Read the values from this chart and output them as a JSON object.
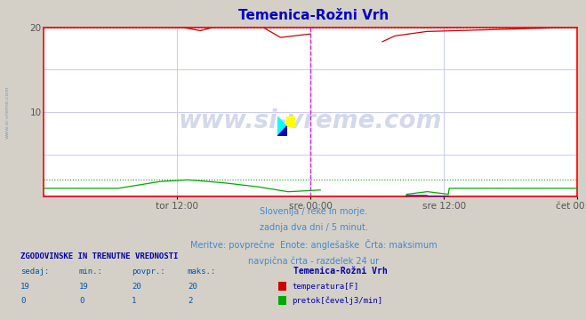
{
  "title": "Temenica-Rožni Vrh",
  "title_color": "#0000cc",
  "bg_color": "#d4d0c8",
  "plot_bg_color": "#ffffff",
  "grid_color": "#c8c8ff",
  "x_labels": [
    "tor 12:00",
    "sre 00:00",
    "sre 12:00",
    "čet 00:00"
  ],
  "ylim": [
    0,
    20
  ],
  "temp_color": "#cc0000",
  "flow_color": "#00aa00",
  "height_color": "#0000cc",
  "max_line_color": "#ff0000",
  "vline_color": "#ff00ff",
  "vline2_color": "#cc00cc",
  "border_color": "#ff0000",
  "subtitle_color": "#4488cc",
  "subtitle_lines": [
    "Slovenija / reke in morje.",
    "zadnja dva dni / 5 minut.",
    "Meritve: povprečne  Enote: anglešaške  Črta: maksimum",
    "navpična črta - razdelek 24 ur"
  ],
  "table_header_color": "#0000aa",
  "table_label_color": "#0055aa",
  "table_value_color": "#0055aa",
  "station_name": "Temenica-Rožni Vrh",
  "table_cols": [
    "sedaj:",
    "min.:",
    "povpr.:",
    "maks.:"
  ],
  "table_data": [
    [
      19,
      19,
      20,
      20
    ],
    [
      0,
      0,
      1,
      2
    ]
  ],
  "series_names": [
    "temperatura[F]",
    "pretok[čevelj3/min]"
  ],
  "series_colors": [
    "#cc0000",
    "#00aa00"
  ],
  "watermark_text": "www.si-vreme.com",
  "watermark_color": "#3355aa",
  "sidebar_text": "www.si-vreme.com",
  "sidebar_color": "#7799bb"
}
